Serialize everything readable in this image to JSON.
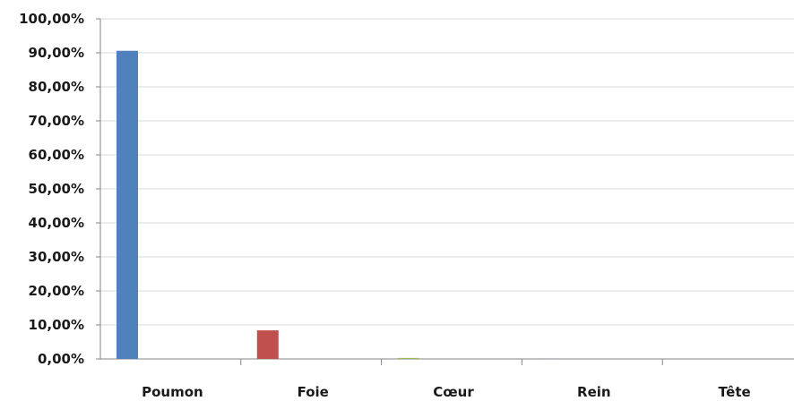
{
  "chart_data": {
    "type": "bar",
    "title": "",
    "xlabel": "",
    "ylabel": "",
    "categories": [
      "Poumon",
      "Foie",
      "Cœur",
      "Rein",
      "Tête"
    ],
    "series": [
      {
        "values": [
          90.6,
          8.4,
          0.3,
          0.05,
          0.0
        ],
        "colors": [
          "#4f81bd",
          "#c0504d",
          "#9bbb59",
          "#8064a2",
          "#4bacc6"
        ]
      }
    ],
    "ylim": [
      0,
      100
    ],
    "yticks": [
      0,
      10,
      20,
      30,
      40,
      50,
      60,
      70,
      80,
      90,
      100
    ],
    "ytick_labels": [
      "0,00%",
      "10,00%",
      "20,00%",
      "30,00%",
      "40,00%",
      "50,00%",
      "60,00%",
      "70,00%",
      "80,00%",
      "90,00%",
      "100,00%"
    ],
    "grid": true,
    "legend": "none",
    "gridline_color": "#d9d9d9",
    "axis_color": "#868686"
  }
}
